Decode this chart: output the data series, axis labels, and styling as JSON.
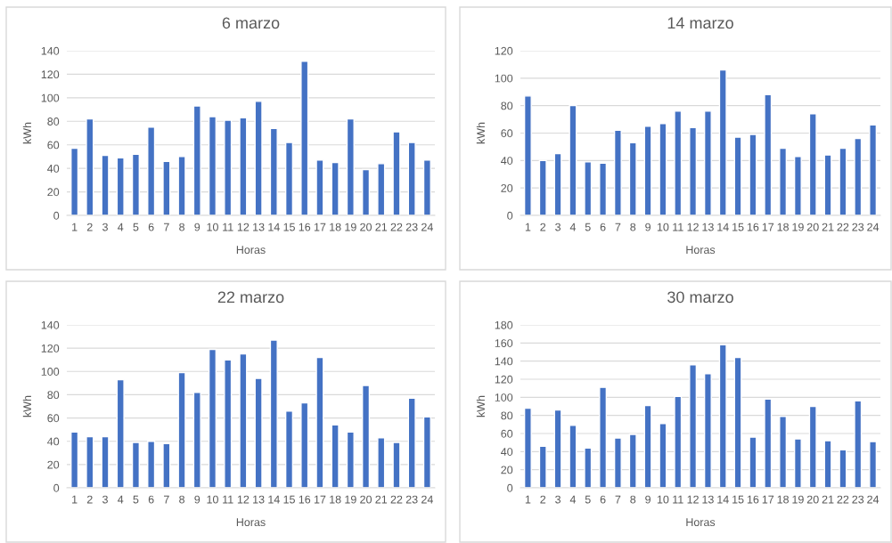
{
  "chart_data": [
    {
      "type": "bar",
      "title": "6 marzo",
      "xlabel": "Horas",
      "ylabel": "kWh",
      "categories": [
        "1",
        "2",
        "3",
        "4",
        "5",
        "6",
        "7",
        "8",
        "9",
        "10",
        "11",
        "12",
        "13",
        "14",
        "15",
        "16",
        "17",
        "18",
        "19",
        "20",
        "21",
        "22",
        "23",
        "24"
      ],
      "color": "#4472c4",
      "values": [
        57,
        82,
        51,
        49,
        52,
        75,
        46,
        50,
        93,
        84,
        81,
        83,
        97,
        74,
        62,
        131,
        47,
        45,
        82,
        39,
        44,
        71,
        62,
        47
      ],
      "ylim": [
        0,
        140
      ],
      "yticks": [
        0,
        20,
        40,
        60,
        80,
        100,
        120,
        140
      ],
      "grid": "y",
      "legend": false
    },
    {
      "type": "bar",
      "title": "14 marzo",
      "xlabel": "Horas",
      "ylabel": "kWh",
      "categories": [
        "1",
        "2",
        "3",
        "4",
        "5",
        "6",
        "7",
        "8",
        "9",
        "10",
        "11",
        "12",
        "13",
        "14",
        "15",
        "16",
        "17",
        "18",
        "19",
        "20",
        "21",
        "22",
        "23",
        "24"
      ],
      "color": "#4472c4",
      "values": [
        87,
        40,
        45,
        80,
        39,
        38,
        62,
        53,
        65,
        67,
        76,
        64,
        76,
        106,
        57,
        59,
        88,
        49,
        43,
        74,
        44,
        49,
        56,
        66
      ],
      "ylim": [
        0,
        120
      ],
      "yticks": [
        0,
        20,
        40,
        60,
        80,
        100,
        120
      ],
      "grid": "y",
      "legend": false
    },
    {
      "type": "bar",
      "title": "22 marzo",
      "xlabel": "Horas",
      "ylabel": "kWh",
      "categories": [
        "1",
        "2",
        "3",
        "4",
        "5",
        "6",
        "7",
        "8",
        "9",
        "10",
        "11",
        "12",
        "13",
        "14",
        "15",
        "16",
        "17",
        "18",
        "19",
        "20",
        "21",
        "22",
        "23",
        "24"
      ],
      "color": "#4472c4",
      "values": [
        48,
        44,
        44,
        93,
        39,
        40,
        38,
        99,
        82,
        119,
        110,
        115,
        94,
        127,
        66,
        73,
        112,
        54,
        48,
        88,
        43,
        39,
        77,
        61
      ],
      "ylim": [
        0,
        140
      ],
      "yticks": [
        0,
        20,
        40,
        60,
        80,
        100,
        120,
        140
      ],
      "grid": "y",
      "legend": false
    },
    {
      "type": "bar",
      "title": "30 marzo",
      "xlabel": "Horas",
      "ylabel": "kWh",
      "categories": [
        "1",
        "2",
        "3",
        "4",
        "5",
        "6",
        "7",
        "8",
        "9",
        "10",
        "11",
        "12",
        "13",
        "14",
        "15",
        "16",
        "17",
        "18",
        "19",
        "20",
        "21",
        "22",
        "23",
        "24"
      ],
      "color": "#4472c4",
      "values": [
        88,
        46,
        86,
        69,
        44,
        111,
        55,
        59,
        91,
        71,
        101,
        136,
        126,
        158,
        144,
        56,
        98,
        79,
        54,
        90,
        52,
        42,
        96,
        51
      ],
      "ylim": [
        0,
        180
      ],
      "yticks": [
        0,
        20,
        40,
        60,
        80,
        100,
        120,
        140,
        160,
        180
      ],
      "grid": "y",
      "legend": false
    }
  ]
}
